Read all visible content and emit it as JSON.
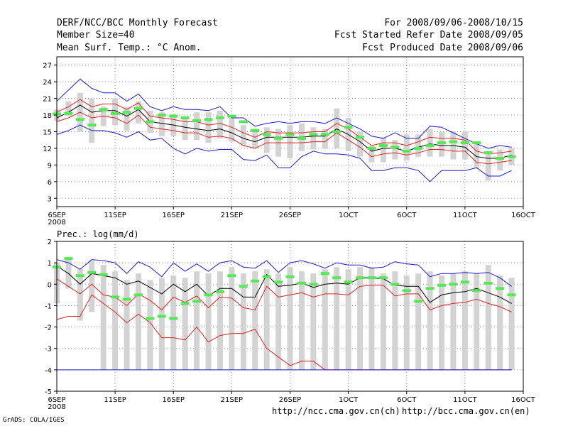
{
  "header": {
    "title": "DERF/NCC/BCC Monthly Forecast",
    "member_size": "Member Size=40",
    "variable": "Mean Surf. Temp.: °C Anom.",
    "period": "For 2008/09/06-2008/10/15",
    "refer_date": "Fcst Started Refer Date 2008/09/05",
    "produced_date": "Fcst Produced Date 2008/09/06"
  },
  "footer": {
    "grads": "GrADS: COLA/IGES",
    "url_ncc": "http://ncc.cma.gov.cn(ch)",
    "url_bcc": "http://bcc.cma.gov.cn(en)"
  },
  "colors": {
    "box": "#d3d3d3",
    "obs": "#55e855",
    "ensemble_mean": "#000000",
    "inner_range": "#dd2222",
    "outer_range": "#1a1acc",
    "grid": "#888888"
  },
  "chart_data": [
    {
      "type": "line",
      "title": "Mean Surf. Temp.: °C Anom.",
      "x_tick_labels": [
        "6SEP",
        "11SEP",
        "16SEP",
        "21SEP",
        "26SEP",
        "1OCT",
        "6OCT",
        "11OCT",
        "16OCT"
      ],
      "x_tick_days": [
        1,
        6,
        11,
        16,
        21,
        26,
        31,
        36,
        41
      ],
      "year_label": "2008",
      "x_range": [
        1,
        41
      ],
      "y_range": [
        1.5,
        28.5
      ],
      "y_ticks": [
        3,
        6,
        9,
        12,
        15,
        18,
        21,
        24,
        27
      ],
      "days": [
        1,
        2,
        3,
        4,
        5,
        6,
        7,
        8,
        9,
        10,
        11,
        12,
        13,
        14,
        15,
        16,
        17,
        18,
        19,
        20,
        21,
        22,
        23,
        24,
        25,
        26,
        27,
        28,
        29,
        30,
        31,
        32,
        33,
        34,
        35,
        36,
        37,
        38,
        39,
        40
      ],
      "series": [
        {
          "name": "ensemble_max",
          "values": [
            20.5,
            22.5,
            24.5,
            22.8,
            22.0,
            22.0,
            20.5,
            21.8,
            19.5,
            18.8,
            19.5,
            19.0,
            19.0,
            18.8,
            19.5,
            17.5,
            17.5,
            16.0,
            16.5,
            16.8,
            16.5,
            16.8,
            16.8,
            16.5,
            17.5,
            16.5,
            15.5,
            14.2,
            13.8,
            14.8,
            13.8,
            13.8,
            16.0,
            15.8,
            14.8,
            13.8,
            12.8,
            12.0,
            12.5,
            12.2
          ]
        },
        {
          "name": "upper_inner",
          "values": [
            18.5,
            19.5,
            20.8,
            19.5,
            20.0,
            20.0,
            19.0,
            20.2,
            17.8,
            17.5,
            17.2,
            16.8,
            16.8,
            16.2,
            16.5,
            15.8,
            14.8,
            14.0,
            15.0,
            14.8,
            14.8,
            14.8,
            15.0,
            15.0,
            16.5,
            15.5,
            14.0,
            12.5,
            13.0,
            13.0,
            12.5,
            13.2,
            14.0,
            13.8,
            13.8,
            13.5,
            11.5,
            11.0,
            11.2,
            11.5
          ]
        },
        {
          "name": "ensemble_mean",
          "values": [
            17.5,
            18.5,
            19.8,
            18.5,
            18.8,
            18.8,
            17.8,
            19.0,
            16.8,
            16.5,
            16.2,
            15.8,
            15.5,
            15.2,
            15.5,
            14.8,
            13.8,
            13.2,
            14.0,
            14.0,
            14.0,
            14.0,
            14.2,
            14.2,
            15.5,
            14.5,
            13.2,
            11.5,
            12.0,
            12.0,
            11.5,
            12.2,
            12.8,
            12.5,
            12.5,
            12.2,
            10.5,
            10.2,
            10.2,
            10.8
          ]
        },
        {
          "name": "lower_inner",
          "values": [
            16.8,
            17.5,
            18.5,
            17.5,
            17.8,
            17.5,
            16.5,
            18.0,
            15.8,
            15.5,
            15.2,
            14.8,
            14.8,
            14.0,
            14.2,
            13.8,
            12.5,
            12.0,
            13.0,
            13.0,
            13.0,
            13.0,
            13.2,
            13.2,
            14.8,
            13.5,
            12.2,
            10.5,
            11.0,
            11.2,
            10.8,
            11.2,
            11.8,
            11.8,
            11.5,
            11.5,
            9.5,
            9.2,
            9.5,
            9.8
          ]
        },
        {
          "name": "ensemble_min",
          "values": [
            14.5,
            15.2,
            16.2,
            15.2,
            15.2,
            14.8,
            14.0,
            15.0,
            13.5,
            13.8,
            12.0,
            11.0,
            12.0,
            11.5,
            11.8,
            11.8,
            10.0,
            9.8,
            10.8,
            8.5,
            8.5,
            10.5,
            11.5,
            11.0,
            11.0,
            10.8,
            10.2,
            8.0,
            8.0,
            8.5,
            8.5,
            8.0,
            6.0,
            8.0,
            8.0,
            8.0,
            8.5,
            7.0,
            7.0,
            8.0
          ]
        }
      ],
      "boxes": [
        {
          "lo": 17.0,
          "hi": 19.0,
          "obs": 18.2
        },
        {
          "lo": 17.8,
          "hi": 20.5,
          "obs": 18.3
        },
        {
          "lo": 15.0,
          "hi": 22.0,
          "obs": 17.2
        },
        {
          "lo": 13.0,
          "hi": 21.0,
          "obs": 16.2
        },
        {
          "lo": 16.0,
          "hi": 19.5,
          "obs": 19.0
        },
        {
          "lo": 16.2,
          "hi": 21.0,
          "obs": 18.3
        },
        {
          "lo": 15.2,
          "hi": 19.5,
          "obs": 18.5
        },
        {
          "lo": 16.5,
          "hi": 20.5,
          "obs": 19.2
        },
        {
          "lo": 14.8,
          "hi": 18.8,
          "obs": 16.8
        },
        {
          "lo": 14.2,
          "hi": 18.5,
          "obs": 18.0
        },
        {
          "lo": 14.2,
          "hi": 18.2,
          "obs": 17.8
        },
        {
          "lo": 13.5,
          "hi": 17.8,
          "obs": 17.5
        },
        {
          "lo": 13.5,
          "hi": 18.5,
          "obs": 17.0
        },
        {
          "lo": 13.0,
          "hi": 18.5,
          "obs": 17.2
        },
        {
          "lo": 13.8,
          "hi": 18.8,
          "obs": 17.5
        },
        {
          "lo": 13.2,
          "hi": 17.5,
          "obs": 17.8
        },
        {
          "lo": 12.5,
          "hi": 16.2,
          "obs": 16.8
        },
        {
          "lo": 12.0,
          "hi": 15.5,
          "obs": 15.2
        },
        {
          "lo": 11.2,
          "hi": 15.8,
          "obs": 14.5
        },
        {
          "lo": 10.5,
          "hi": 15.5,
          "obs": 13.8
        },
        {
          "lo": 10.2,
          "hi": 16.2,
          "obs": 14.5
        },
        {
          "lo": 11.5,
          "hi": 16.5,
          "obs": 13.8
        },
        {
          "lo": 11.8,
          "hi": 15.8,
          "obs": 14.5
        },
        {
          "lo": 12.0,
          "hi": 15.5,
          "obs": 14.5
        },
        {
          "lo": 12.0,
          "hi": 19.2,
          "obs": 15.0
        },
        {
          "lo": 11.5,
          "hi": 17.5,
          "obs": 15.8
        },
        {
          "lo": 10.5,
          "hi": 15.0,
          "obs": 14.0
        },
        {
          "lo": 9.5,
          "hi": 12.5,
          "obs": 12.0
        },
        {
          "lo": 9.5,
          "hi": 14.0,
          "obs": 12.5
        },
        {
          "lo": 10.0,
          "hi": 13.5,
          "obs": 12.2
        },
        {
          "lo": 9.8,
          "hi": 14.5,
          "obs": 11.5
        },
        {
          "lo": 10.5,
          "hi": 14.5,
          "obs": 12.0
        },
        {
          "lo": 10.5,
          "hi": 15.5,
          "obs": 12.5
        },
        {
          "lo": 10.5,
          "hi": 15.0,
          "obs": 13.0
        },
        {
          "lo": 10.0,
          "hi": 15.0,
          "obs": 13.2
        },
        {
          "lo": 10.0,
          "hi": 15.0,
          "obs": 13.0
        },
        {
          "lo": 8.5,
          "hi": 13.0,
          "obs": 13.0
        },
        {
          "lo": 6.2,
          "hi": 11.5,
          "obs": 11.2
        },
        {
          "lo": 8.0,
          "hi": 11.8,
          "obs": 10.2
        },
        {
          "lo": 9.0,
          "hi": 12.0,
          "obs": 10.5
        }
      ]
    },
    {
      "type": "line",
      "title": "Prec.: log(mm/d)",
      "x_tick_labels": [
        "6SEP",
        "11SEP",
        "16SEP",
        "21SEP",
        "26SEP",
        "1OCT",
        "6OCT",
        "11OCT",
        "16OCT"
      ],
      "x_tick_days": [
        1,
        6,
        11,
        16,
        21,
        26,
        31,
        36,
        41
      ],
      "year_label": "2008",
      "x_range": [
        1,
        41
      ],
      "y_range": [
        -5,
        2
      ],
      "y_ticks": [
        -5,
        -4,
        -3,
        -2,
        -1,
        0,
        1,
        2
      ],
      "days": [
        1,
        2,
        3,
        4,
        5,
        6,
        7,
        8,
        9,
        10,
        11,
        12,
        13,
        14,
        15,
        16,
        17,
        18,
        19,
        20,
        21,
        22,
        23,
        24,
        25,
        26,
        27,
        28,
        29,
        30,
        31,
        32,
        33,
        34,
        35,
        36,
        37,
        38,
        39,
        40
      ],
      "series": [
        {
          "name": "ensemble_max",
          "values": [
            1.15,
            1.0,
            0.7,
            1.15,
            1.1,
            1.0,
            0.5,
            1.05,
            0.8,
            0.35,
            1.0,
            0.6,
            0.95,
            0.6,
            1.0,
            1.1,
            0.8,
            0.75,
            1.1,
            0.55,
            1.0,
            1.1,
            0.95,
            0.75,
            1.0,
            0.9,
            0.9,
            0.75,
            0.8,
            1.05,
            0.95,
            0.9,
            0.35,
            0.5,
            0.5,
            0.55,
            0.5,
            0.55,
            0.3,
            -0.1
          ]
        },
        {
          "name": "ensemble_mean",
          "values": [
            0.85,
            0.5,
            0.0,
            0.5,
            0.4,
            0.3,
            0.0,
            0.15,
            -0.15,
            -0.45,
            0.0,
            -0.35,
            0.0,
            -0.55,
            -0.2,
            -0.2,
            -0.6,
            -0.6,
            0.45,
            -0.1,
            -0.05,
            0.05,
            -0.15,
            0.0,
            0.05,
            0.0,
            0.3,
            0.3,
            0.25,
            -0.05,
            -0.1,
            -0.1,
            -0.85,
            -0.5,
            -0.4,
            -0.35,
            -0.2,
            -0.4,
            -0.6,
            -0.9
          ]
        },
        {
          "name": "upper_inner",
          "values": [
            0.25,
            -0.1,
            -0.45,
            0.0,
            -0.5,
            -0.6,
            -1.0,
            -0.45,
            -0.75,
            -1.2,
            -0.6,
            -0.85,
            -0.55,
            -1.1,
            -0.6,
            -0.65,
            -1.1,
            -1.2,
            -0.1,
            -0.6,
            -0.5,
            -0.4,
            -0.6,
            -0.45,
            -0.45,
            -0.5,
            -0.1,
            -0.05,
            -0.05,
            -0.55,
            -0.45,
            -0.45,
            -1.2,
            -1.0,
            -0.9,
            -0.85,
            -0.7,
            -0.9,
            -1.05,
            -1.3
          ]
        },
        {
          "name": "lower_inner",
          "values": [
            -1.65,
            -1.5,
            -1.5,
            -0.5,
            -0.9,
            -1.3,
            -1.8,
            -1.4,
            -1.8,
            -2.5,
            -2.5,
            -2.6,
            -2.0,
            -2.7,
            -2.4,
            -2.3,
            -2.3,
            -2.1,
            -3.0,
            -3.4,
            -3.8,
            -3.6,
            -3.6,
            -4.0,
            -4.0,
            -4.0,
            -4.0,
            -4.0,
            -4.0,
            -4.0,
            -4.0,
            -4.0,
            -4.0,
            -4.0,
            -4.0,
            -4.0,
            -4.0,
            -4.0,
            -4.0,
            -4.0
          ]
        },
        {
          "name": "ensemble_min",
          "values": [
            -4.0,
            -4.0,
            -4.0,
            -4.0,
            -4.0,
            -4.0,
            -4.0,
            -4.0,
            -4.0,
            -4.0,
            -4.0,
            -4.0,
            -4.0,
            -4.0,
            -4.0,
            -4.0,
            -4.0,
            -4.0,
            -4.0,
            -4.0,
            -4.0,
            -4.0,
            -4.0,
            -4.0,
            -4.0,
            -4.0,
            -4.0,
            -4.0,
            -4.0,
            -4.0,
            -4.0,
            -4.0,
            -4.0,
            -4.0,
            -4.0,
            -4.0,
            -4.0,
            -4.0,
            -4.0,
            -4.0
          ]
        }
      ],
      "boxes": [
        {
          "lo": -0.9,
          "hi": 1.0,
          "obs": 0.8
        },
        {
          "lo": -0.2,
          "hi": 1.2,
          "obs": 1.2
        },
        {
          "lo": -1.7,
          "hi": 0.7,
          "obs": 0.4
        },
        {
          "lo": -1.3,
          "hi": 1.1,
          "obs": 0.55
        },
        {
          "lo": -4.0,
          "hi": 0.9,
          "obs": 0.45
        },
        {
          "lo": -4.0,
          "hi": 0.6,
          "obs": -0.6
        },
        {
          "lo": -4.0,
          "hi": 0.2,
          "obs": -0.7
        },
        {
          "lo": -4.0,
          "hi": 0.5,
          "obs": -0.5
        },
        {
          "lo": -4.0,
          "hi": 0.2,
          "obs": -1.6
        },
        {
          "lo": -4.0,
          "hi": 0.3,
          "obs": -1.5
        },
        {
          "lo": -4.0,
          "hi": 0.4,
          "obs": -1.6
        },
        {
          "lo": -4.0,
          "hi": 0.3,
          "obs": -0.9
        },
        {
          "lo": -4.0,
          "hi": 0.6,
          "obs": -0.8
        },
        {
          "lo": -4.0,
          "hi": 0.5,
          "obs": -0.5
        },
        {
          "lo": -4.0,
          "hi": 0.6,
          "obs": -0.35
        },
        {
          "lo": -4.0,
          "hi": 0.8,
          "obs": 0.4
        },
        {
          "lo": -4.0,
          "hi": 0.5,
          "obs": -0.1
        },
        {
          "lo": -4.0,
          "hi": 0.6,
          "obs": 0.15
        },
        {
          "lo": -4.0,
          "hi": 0.7,
          "obs": 0.35
        },
        {
          "lo": -4.0,
          "hi": 0.5,
          "obs": 0.1
        },
        {
          "lo": -4.0,
          "hi": 0.8,
          "obs": 0.35
        },
        {
          "lo": -4.0,
          "hi": 0.6,
          "obs": 0.05
        },
        {
          "lo": -4.0,
          "hi": 0.5,
          "obs": 0.0
        },
        {
          "lo": -4.0,
          "hi": 0.7,
          "obs": 0.5
        },
        {
          "lo": -4.0,
          "hi": 0.8,
          "obs": 0.3
        },
        {
          "lo": -4.0,
          "hi": 0.7,
          "obs": 0.1
        },
        {
          "lo": -4.0,
          "hi": 0.8,
          "obs": 0.3
        },
        {
          "lo": -4.0,
          "hi": 0.8,
          "obs": 0.3
        },
        {
          "lo": -4.0,
          "hi": 0.5,
          "obs": 0.3
        },
        {
          "lo": -4.0,
          "hi": 0.6,
          "obs": 0.0
        },
        {
          "lo": -4.0,
          "hi": 0.4,
          "obs": -0.3
        },
        {
          "lo": -4.0,
          "hi": 0.5,
          "obs": -0.8
        },
        {
          "lo": -4.0,
          "hi": 0.6,
          "obs": -0.2
        },
        {
          "lo": -4.0,
          "hi": 0.4,
          "obs": -0.05
        },
        {
          "lo": -4.0,
          "hi": 0.5,
          "obs": 0.0
        },
        {
          "lo": -4.0,
          "hi": 0.6,
          "obs": 0.1
        },
        {
          "lo": -4.0,
          "hi": 0.5,
          "obs": -0.3
        },
        {
          "lo": -4.0,
          "hi": 0.9,
          "obs": 0.05
        },
        {
          "lo": -4.0,
          "hi": 0.4,
          "obs": -0.2
        },
        {
          "lo": -4.0,
          "hi": 0.3,
          "obs": -0.5
        }
      ]
    }
  ]
}
